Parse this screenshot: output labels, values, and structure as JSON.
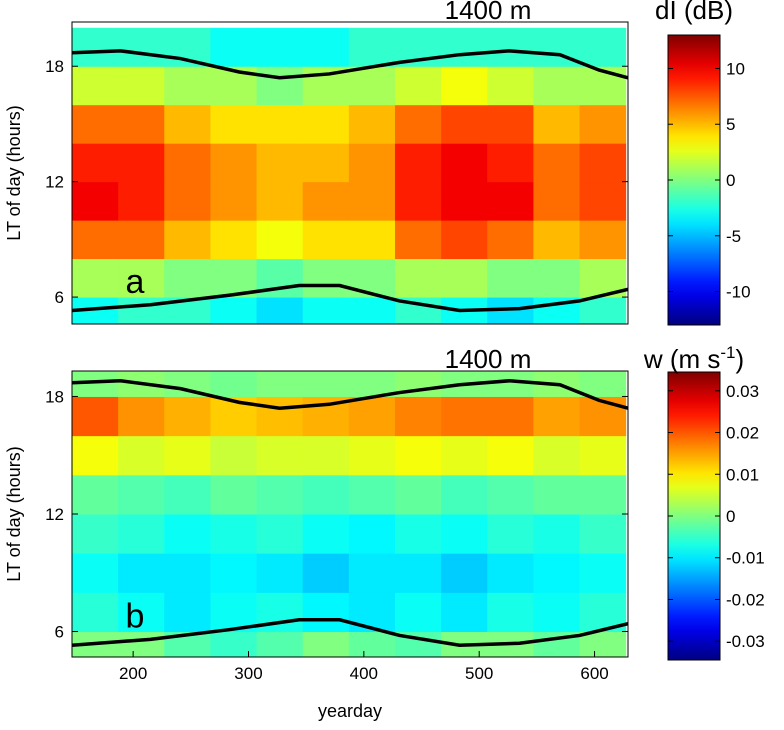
{
  "chart_data": [
    {
      "type": "heatmap",
      "title": "1400 m",
      "colorbar_label": "dI (dB)",
      "panel_label": "a",
      "y_label": "LT of day (hours)",
      "colormap": "jet",
      "x": [
        167,
        207,
        247,
        287,
        327,
        367,
        407,
        447,
        487,
        527,
        567,
        607
      ],
      "y": [
        5,
        7,
        9,
        11,
        13,
        15,
        17,
        19
      ],
      "z": [
        [
          -3,
          -2,
          -2,
          -3,
          -4,
          -3,
          -3,
          -2,
          -3,
          -4,
          -3,
          -2
        ],
        [
          1,
          1,
          0,
          0,
          -1,
          0,
          0,
          1,
          1,
          0,
          0,
          1
        ],
        [
          7,
          7,
          5,
          4,
          3,
          4,
          4,
          7,
          8,
          7,
          5,
          6
        ],
        [
          10,
          9,
          7,
          6,
          5,
          6,
          6,
          9,
          10,
          10,
          7,
          8
        ],
        [
          9,
          9,
          7,
          6,
          5,
          5,
          6,
          9,
          10,
          9,
          7,
          8
        ],
        [
          7,
          7,
          5,
          4,
          4,
          4,
          5,
          7,
          8,
          8,
          5,
          6
        ],
        [
          2,
          2,
          1,
          1,
          0,
          1,
          1,
          2,
          3,
          2,
          1,
          1
        ],
        [
          -2,
          -2,
          -2,
          -3,
          -3,
          -3,
          -2,
          -2,
          -2,
          -2,
          -2,
          -2
        ]
      ],
      "xlim": [
        147,
        629
      ],
      "ylim": [
        4.6,
        20.3
      ],
      "yticks": [
        6,
        12,
        18
      ],
      "clim": [
        -13,
        13
      ],
      "colorbar_ticks": [
        -10,
        -5,
        0,
        5,
        10
      ],
      "curves": [
        {
          "color": "#000000",
          "x": [
            147,
            189,
            241,
            292,
            327,
            370,
            431,
            483,
            526,
            570,
            604,
            629
          ],
          "values": [
            18.7,
            18.8,
            18.4,
            17.7,
            17.4,
            17.6,
            18.2,
            18.6,
            18.8,
            18.6,
            17.8,
            17.4
          ]
        },
        {
          "color": "#000000",
          "x": [
            147,
            215,
            284,
            344,
            379,
            431,
            483,
            535,
            587,
            629
          ],
          "values": [
            5.3,
            5.6,
            6.1,
            6.6,
            6.6,
            5.8,
            5.3,
            5.4,
            5.8,
            6.4
          ]
        }
      ]
    },
    {
      "type": "heatmap",
      "title": "1400 m",
      "colorbar_label": {
        "text": "w (m s",
        "sup": "-1",
        "end": ")"
      },
      "panel_label": "b",
      "y_label": "LT of day (hours)",
      "x_label": "yearday",
      "colormap": "jet",
      "x": [
        167,
        207,
        247,
        287,
        327,
        367,
        407,
        447,
        487,
        527,
        567,
        607
      ],
      "y": [
        5,
        7,
        9,
        11,
        13,
        15,
        17,
        19
      ],
      "z": [
        [
          0,
          0,
          -0.003,
          -0.005,
          -0.003,
          0,
          -0.002,
          -0.003,
          0,
          0,
          -0.002,
          0
        ],
        [
          -0.006,
          -0.008,
          -0.01,
          -0.008,
          -0.007,
          -0.009,
          -0.01,
          -0.008,
          -0.01,
          -0.007,
          -0.008,
          -0.006
        ],
        [
          -0.008,
          -0.01,
          -0.01,
          -0.009,
          -0.01,
          -0.012,
          -0.01,
          -0.01,
          -0.012,
          -0.01,
          -0.009,
          -0.008
        ],
        [
          -0.005,
          -0.006,
          -0.008,
          -0.007,
          -0.006,
          -0.008,
          -0.009,
          -0.007,
          -0.008,
          -0.006,
          -0.007,
          -0.005
        ],
        [
          -0.002,
          -0.003,
          -0.004,
          -0.002,
          -0.003,
          -0.004,
          -0.003,
          -0.002,
          -0.004,
          -0.003,
          -0.002,
          -0.002
        ],
        [
          0.008,
          0.006,
          0.007,
          0.005,
          0.006,
          0.006,
          0.007,
          0.008,
          0.007,
          0.008,
          0.006,
          0.007
        ],
        [
          0.02,
          0.016,
          0.014,
          0.012,
          0.013,
          0.014,
          0.015,
          0.017,
          0.018,
          0.018,
          0.015,
          0.016
        ],
        [
          0,
          0.001,
          0,
          -0.001,
          0,
          0,
          0,
          0.001,
          0,
          0,
          0.001,
          0
        ]
      ],
      "xlim": [
        147,
        629
      ],
      "ylim": [
        4.7,
        19.3
      ],
      "yticks": [
        6,
        12,
        18
      ],
      "xticks": [
        200,
        300,
        400,
        500,
        600
      ],
      "clim": [
        -0.0345,
        0.0345
      ],
      "colorbar_ticks": [
        -0.03,
        -0.02,
        -0.01,
        0,
        0.01,
        0.02,
        0.03
      ],
      "curves": [
        {
          "color": "#000000",
          "x": [
            147,
            189,
            241,
            292,
            327,
            370,
            431,
            483,
            526,
            570,
            604,
            629
          ],
          "values": [
            18.7,
            18.8,
            18.4,
            17.7,
            17.4,
            17.6,
            18.2,
            18.6,
            18.8,
            18.6,
            17.8,
            17.4
          ]
        },
        {
          "color": "#000000",
          "x": [
            147,
            215,
            284,
            344,
            379,
            431,
            483,
            535,
            587,
            629
          ],
          "values": [
            5.3,
            5.6,
            6.1,
            6.6,
            6.6,
            5.8,
            5.3,
            5.4,
            5.8,
            6.4
          ]
        }
      ]
    }
  ]
}
